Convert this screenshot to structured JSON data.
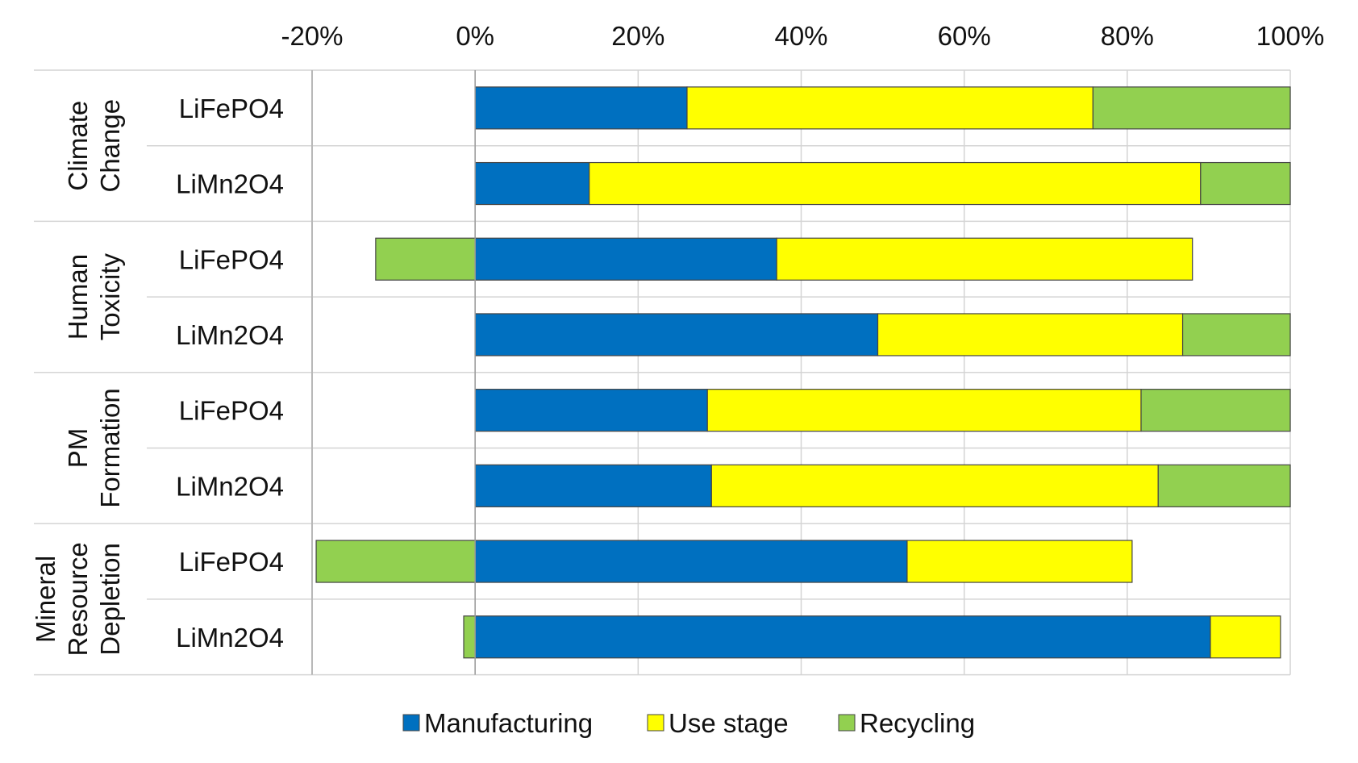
{
  "chart_data": {
    "type": "bar",
    "orientation": "horizontal",
    "stacked": true,
    "xlim": [
      -20,
      100
    ],
    "xticks": [
      "-20%",
      "0%",
      "20%",
      "40%",
      "60%",
      "80%",
      "100%"
    ],
    "xtick_values": [
      -20,
      0,
      20,
      40,
      60,
      80,
      100
    ],
    "groups": [
      {
        "label_lines": [
          "Climate",
          "Change"
        ],
        "rows": [
          0,
          1
        ]
      },
      {
        "label_lines": [
          "Human",
          "Toxicity"
        ],
        "rows": [
          2,
          3
        ]
      },
      {
        "label_lines": [
          "PM",
          "Formation"
        ],
        "rows": [
          4,
          5
        ]
      },
      {
        "label_lines": [
          "Mineral",
          "Resource",
          "Depletion"
        ],
        "rows": [
          6,
          7
        ]
      }
    ],
    "categories": [
      "LiFePO4",
      "LiMn2O4",
      "LiFePO4",
      "LiMn2O4",
      "LiFePO4",
      "LiMn2O4",
      "LiFePO4",
      "LiMn2O4"
    ],
    "series": [
      {
        "name": "Manufacturing",
        "color": "#0070c0",
        "values": [
          26,
          14,
          37,
          49.4,
          28.5,
          29,
          53,
          90.2
        ]
      },
      {
        "name": "Use stage",
        "color": "#ffff00",
        "values": [
          49.8,
          75,
          51,
          37.4,
          53.2,
          54.8,
          27.6,
          8.6
        ]
      },
      {
        "name": "Recycling",
        "color": "#92d050",
        "values": [
          24.2,
          11,
          -12.2,
          13.2,
          18.3,
          16.2,
          -19.5,
          -1.4
        ]
      }
    ],
    "legend": "bottom",
    "grid": true
  }
}
